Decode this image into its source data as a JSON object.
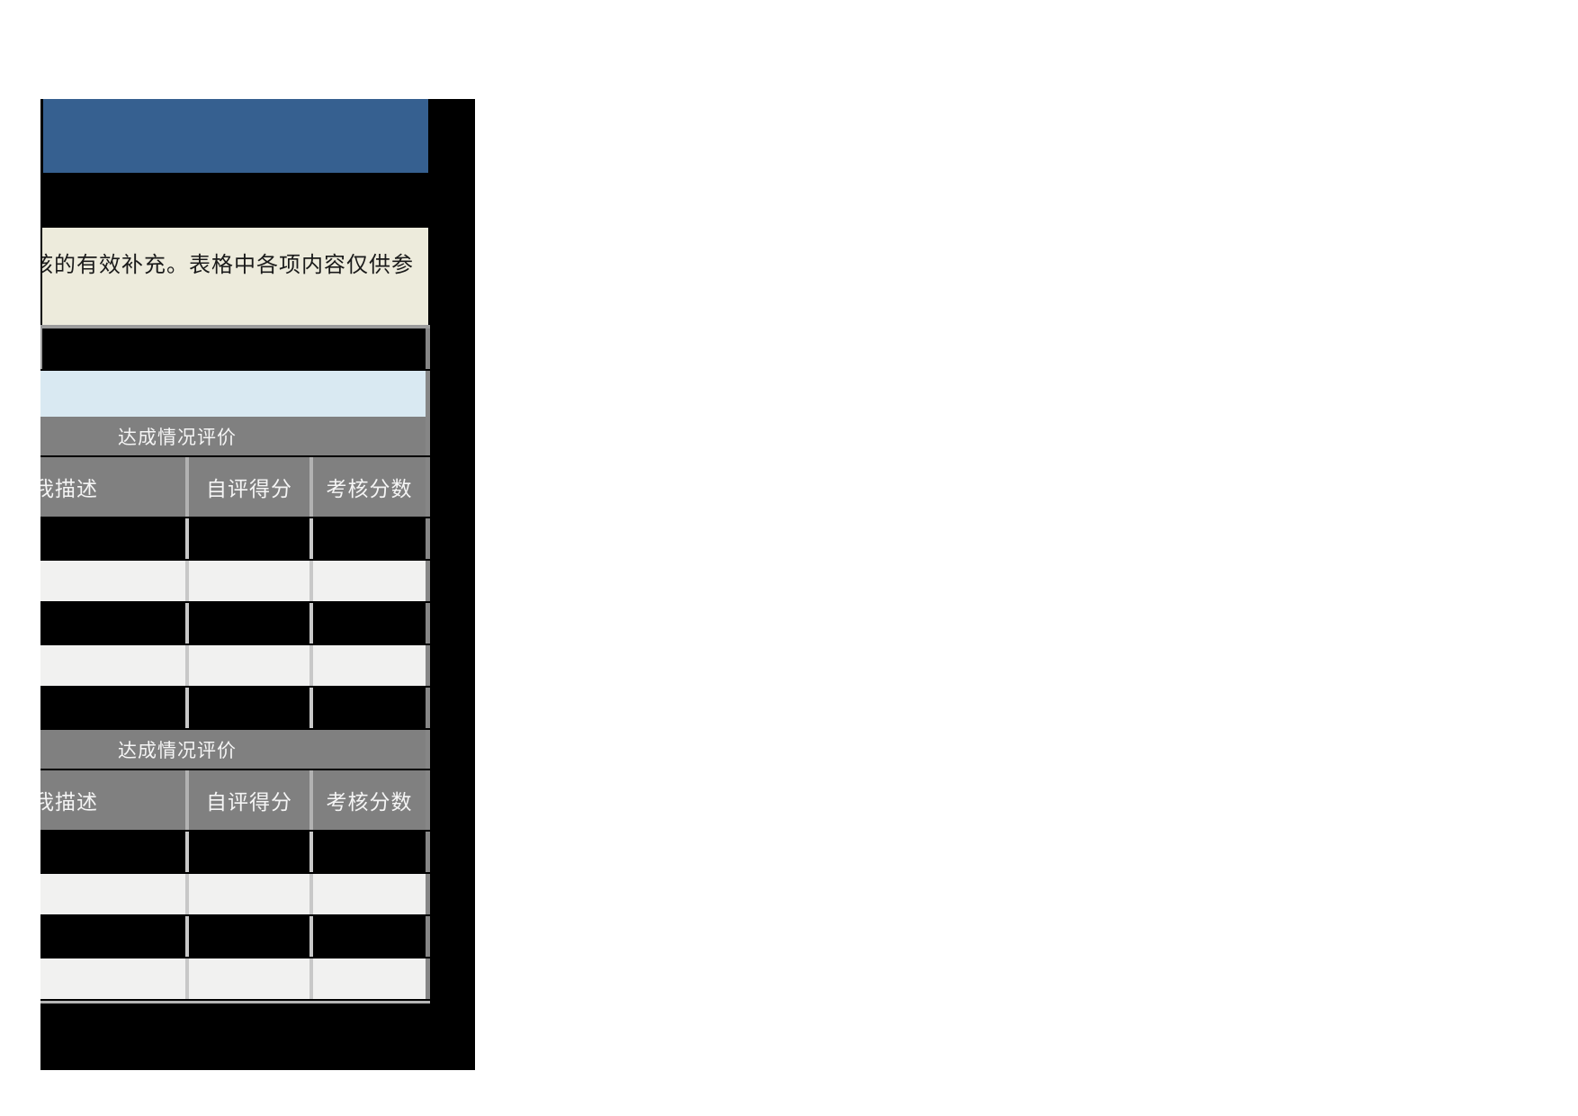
{
  "viewport": {
    "background": "#000000"
  },
  "banner": {
    "color": "#366090"
  },
  "intro": {
    "partial_char": "核",
    "text": "的有效补充。表格中各项内容仅供参"
  },
  "table": {
    "pre_rows": [
      {
        "type": "merged",
        "color": "dark"
      },
      {
        "type": "merged",
        "color": "lightblue"
      }
    ],
    "sections": [
      {
        "band_label": "达成情况评价",
        "headers": {
          "description_partial": "我描述",
          "self_score": "自评得分",
          "assess_score": "考核分数"
        },
        "rows": [
          "dark",
          "light",
          "dark",
          "light",
          "dark"
        ]
      },
      {
        "band_label": "达成情况评价",
        "headers": {
          "description_partial": "我描述",
          "self_score": "自评得分",
          "assess_score": "考核分数"
        },
        "rows": [
          "dark",
          "light",
          "dark",
          "light"
        ]
      }
    ]
  },
  "colors": {
    "banner_blue": "#366090",
    "note_bg": "#edebdc",
    "highlight_row": "#d9e9f2",
    "header_gray": "#808080",
    "row_light": "#f1f1f0",
    "row_dark": "#000000",
    "grid_light": "#c8c8c8",
    "grid_medium": "#9c9c9c",
    "right_edge_gray": "#868686"
  }
}
